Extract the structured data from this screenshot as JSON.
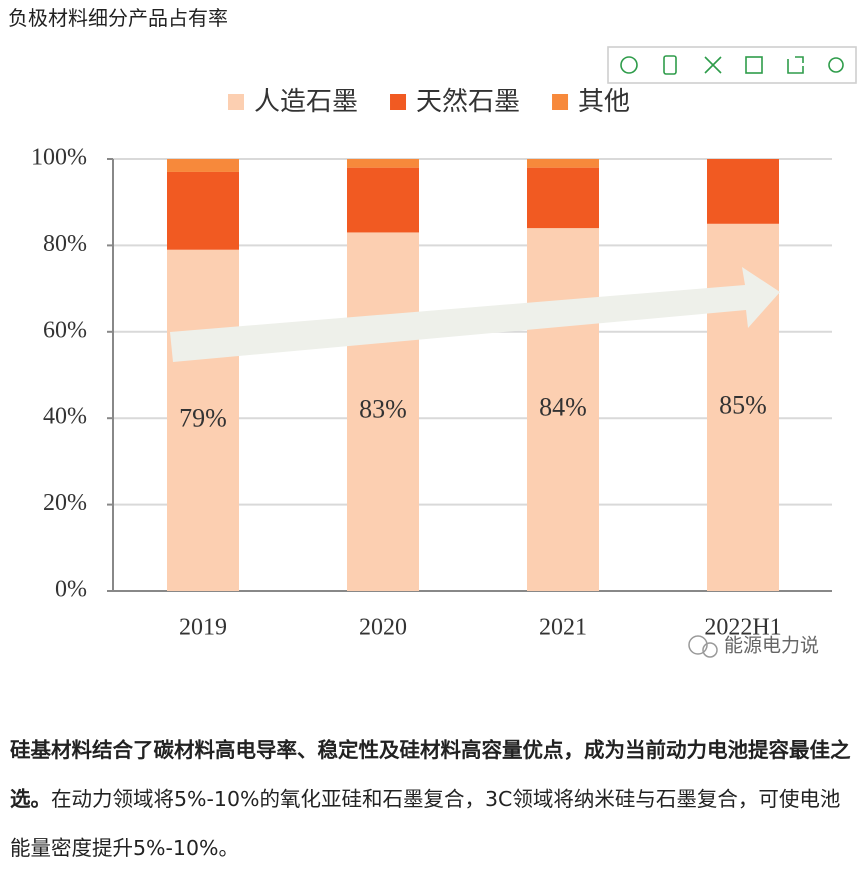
{
  "page_title": "负极材料细分产品占有率",
  "chart_data": {
    "type": "stacked_bar",
    "categories": [
      "2019",
      "2020",
      "2021",
      "2022H1"
    ],
    "series": [
      {
        "name": "人造石墨",
        "color": "#fccfb1",
        "values": [
          79,
          83,
          84,
          85
        ],
        "value_labels": [
          "79%",
          "83%",
          "84%",
          "85%"
        ]
      },
      {
        "name": "天然石墨",
        "color": "#f15a22",
        "values": [
          18,
          15,
          14,
          15
        ]
      },
      {
        "name": "其他",
        "color": "#f7893b",
        "values": [
          3,
          2,
          2,
          0
        ]
      }
    ],
    "ylim": [
      0,
      100
    ],
    "yticks": [
      {
        "value": 0,
        "label": "0%"
      },
      {
        "value": 20,
        "label": "20%"
      },
      {
        "value": 40,
        "label": "40%"
      },
      {
        "value": 60,
        "label": "60%"
      },
      {
        "value": 80,
        "label": "80%"
      },
      {
        "value": 100,
        "label": "100%"
      }
    ],
    "grid": true,
    "legend": "top"
  },
  "watermark": "能源电力说",
  "paragraph": {
    "bold": "硅基材料结合了碳材料高电导率、稳定性及硅材料高容量优点，成为当前动力电池提容最佳之选。",
    "text": "在动力领域将5%-10%的氧化亚硅和石墨复合，3C领域将纳米硅与石墨复合，可使电池能量密度提升5%-10%。"
  }
}
